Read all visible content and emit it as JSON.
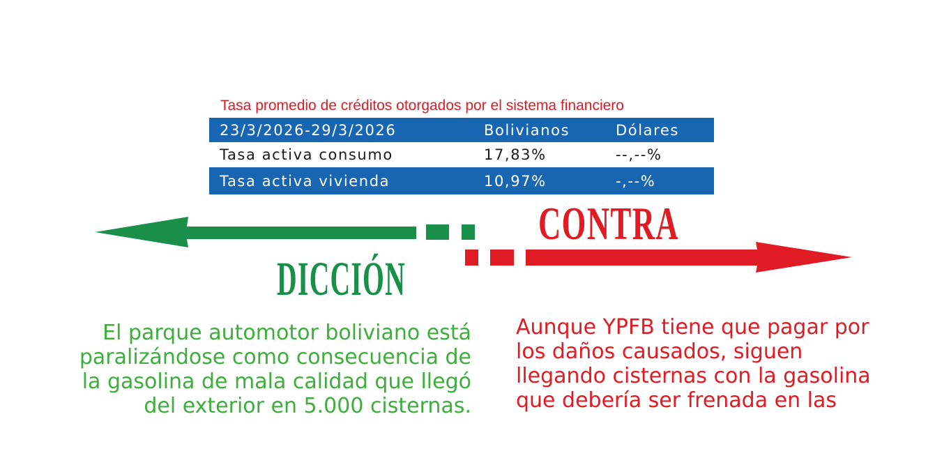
{
  "rates": {
    "title": "Tasa promedio de créditos otorgados por el sistema financiero",
    "header": {
      "period": "23/3/2026-29/3/2026",
      "col_bolivianos": "Bolivianos",
      "col_dolares": "Dólares"
    },
    "rows": [
      {
        "label": "Tasa activa consumo",
        "bolivianos": "17,83%",
        "dolares": "--,--%"
      },
      {
        "label": "Tasa activa vivienda",
        "bolivianos": "10,97%",
        "dolares": "-,--%"
      }
    ],
    "colors": {
      "band": "#1865b2",
      "title": "#e01b24"
    }
  },
  "banner": {
    "left_word": "DICCIÓN",
    "right_word": "CONTRA",
    "colors": {
      "green": "#1a8f4a",
      "red": "#e01b24"
    }
  },
  "columns": {
    "left_lines": [
      "El parque automotor boliviano está",
      "paralizándose como consecuencia de",
      "la gasolina de mala calidad que llegó",
      "del exterior en 5.000 cisternas."
    ],
    "right_lines": [
      "Aunque YPFB tiene que pagar por",
      "los daños causados, siguen",
      "llegando cisternas con la gasolina",
      "que debería ser frenada en las"
    ]
  }
}
